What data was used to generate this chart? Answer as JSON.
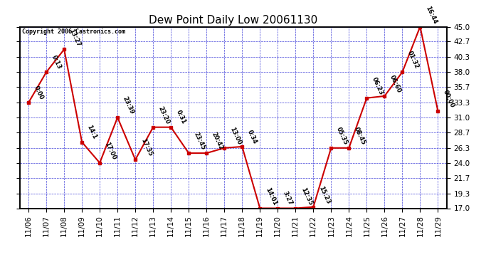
{
  "title": "Dew Point Daily Low 20061130",
  "copyright": "Copyright 2006 Castronics.com",
  "ylim": [
    17.0,
    45.0
  ],
  "yticks": [
    17.0,
    19.3,
    21.7,
    24.0,
    26.3,
    28.7,
    31.0,
    33.3,
    35.7,
    38.0,
    40.3,
    42.7,
    45.0
  ],
  "dates": [
    "11/06",
    "11/07",
    "11/08",
    "11/09",
    "11/10",
    "11/11",
    "11/12",
    "11/13",
    "11/14",
    "11/15",
    "11/16",
    "11/17",
    "11/18",
    "11/19",
    "11/20",
    "11/21",
    "11/22",
    "11/23",
    "11/24",
    "11/25",
    "11/26",
    "11/27",
    "11/28",
    "11/29"
  ],
  "values": [
    33.3,
    38.0,
    41.5,
    27.2,
    24.0,
    31.0,
    24.5,
    29.5,
    29.5,
    25.5,
    25.5,
    26.3,
    26.5,
    17.0,
    17.0,
    17.0,
    17.2,
    26.3,
    26.3,
    34.0,
    34.3,
    38.0,
    45.0,
    32.0
  ],
  "point_labels": [
    "0:00",
    "0:13",
    "13:27",
    "14:1",
    "17:00",
    "23:39",
    "17:35",
    "23:20",
    "0:31",
    "23:45",
    "20:42",
    "13:00",
    "0:34",
    "14:01",
    "3:27",
    "12:35",
    "15:23",
    "05:35",
    "08:45",
    "06:23",
    "06:60",
    "01:32",
    "16:44",
    "00:00"
  ],
  "line_color": "#cc0000",
  "marker_color": "#cc0000",
  "bg_color": "#ffffff",
  "grid_color": "#0000cc",
  "title_fontsize": 11,
  "label_fontsize": 6.0,
  "tick_fontsize": 7.5,
  "figwidth": 6.9,
  "figheight": 3.75,
  "dpi": 100
}
